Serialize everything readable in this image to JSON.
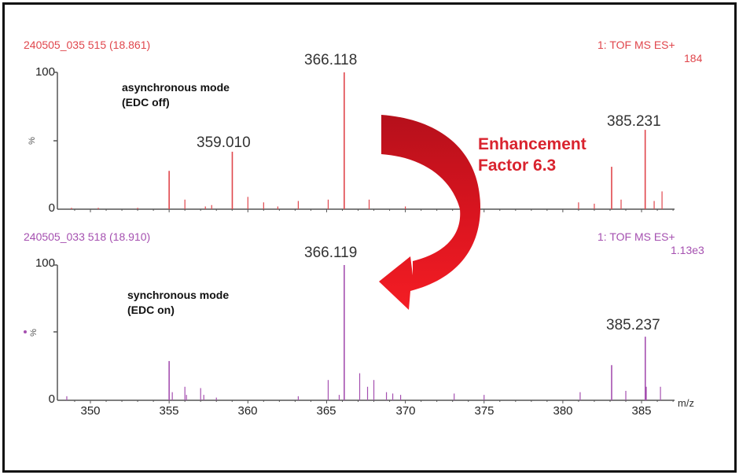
{
  "figure": {
    "top": {
      "header_left": "240505_035 515 (18.861)",
      "header_right_line1": "1: TOF MS ES+",
      "header_right_line2": "184",
      "mode_line1": "asynchronous mode",
      "mode_line2": "(EDC off)",
      "y_top": "100",
      "y_bottom": "0",
      "y_unit": "%",
      "peak_labels": [
        "366.118",
        "359.010",
        "385.231"
      ],
      "color": "#e0464c"
    },
    "bottom": {
      "header_left": "240505_033 518 (18.910)",
      "header_right_line1": "1: TOF MS ES+",
      "header_right_line2": "1.13e3",
      "mode_line1": "synchronous mode",
      "mode_line2": "(EDC on)",
      "y_top": "100",
      "y_bottom": "0",
      "y_unit": "%",
      "peak_labels": [
        "366.119",
        "385.237"
      ],
      "color": "#a550b0"
    },
    "annotation": {
      "line1": "Enhancement",
      "line2": "Factor 6.3",
      "color": "#d9232e"
    },
    "x_axis": {
      "ticks": [
        "350",
        "355",
        "360",
        "365",
        "370",
        "375",
        "380",
        "385"
      ],
      "unit": "m/z"
    }
  },
  "chart_data": [
    {
      "type": "bar",
      "title": "240505_035 515 (18.861) — asynchronous mode (EDC off)",
      "subtitle": "1: TOF MS ES+ 184",
      "xlabel": "m/z",
      "ylabel": "%",
      "xlim": [
        348,
        387.5
      ],
      "ylim": [
        0,
        100
      ],
      "x": [
        348.8,
        350.5,
        353.0,
        355.0,
        356.0,
        357.3,
        357.7,
        359.01,
        360.0,
        361.0,
        361.9,
        363.2,
        365.1,
        366.118,
        367.7,
        370.0,
        381.0,
        382.0,
        383.1,
        383.7,
        385.231,
        385.8,
        386.3
      ],
      "values": [
        1,
        1,
        1,
        28,
        7,
        2,
        3,
        42,
        9,
        5,
        2,
        6,
        7,
        100,
        7,
        2,
        5,
        4,
        31,
        7,
        58,
        6,
        13
      ],
      "labeled_peaks": [
        {
          "mz": 366.118,
          "label": "366.118"
        },
        {
          "mz": 359.01,
          "label": "359.010"
        },
        {
          "mz": 385.231,
          "label": "385.231"
        }
      ],
      "color": "#e0464c",
      "grid": false
    },
    {
      "type": "bar",
      "title": "240505_033 518 (18.910) — synchronous mode (EDC on)",
      "subtitle": "1: TOF MS ES+ 1.13e3",
      "xlabel": "m/z",
      "ylabel": "%",
      "xlim": [
        348,
        387.5
      ],
      "ylim": [
        0,
        100
      ],
      "x": [
        348.5,
        355.0,
        355.2,
        356.0,
        356.1,
        357.0,
        357.2,
        358.0,
        363.2,
        365.1,
        365.8,
        366.119,
        367.1,
        367.6,
        368.0,
        368.8,
        369.2,
        369.7,
        373.1,
        375.0,
        381.1,
        383.1,
        384.0,
        385.237,
        385.3,
        386.2
      ],
      "values": [
        3,
        29,
        6,
        10,
        4,
        9,
        4,
        2,
        3,
        15,
        4,
        100,
        20,
        10,
        15,
        6,
        5,
        4,
        5,
        4,
        6,
        26,
        7,
        47,
        10,
        10
      ],
      "labeled_peaks": [
        {
          "mz": 366.119,
          "label": "366.119"
        },
        {
          "mz": 385.237,
          "label": "385.237"
        }
      ],
      "color": "#a550b0",
      "grid": false
    }
  ]
}
